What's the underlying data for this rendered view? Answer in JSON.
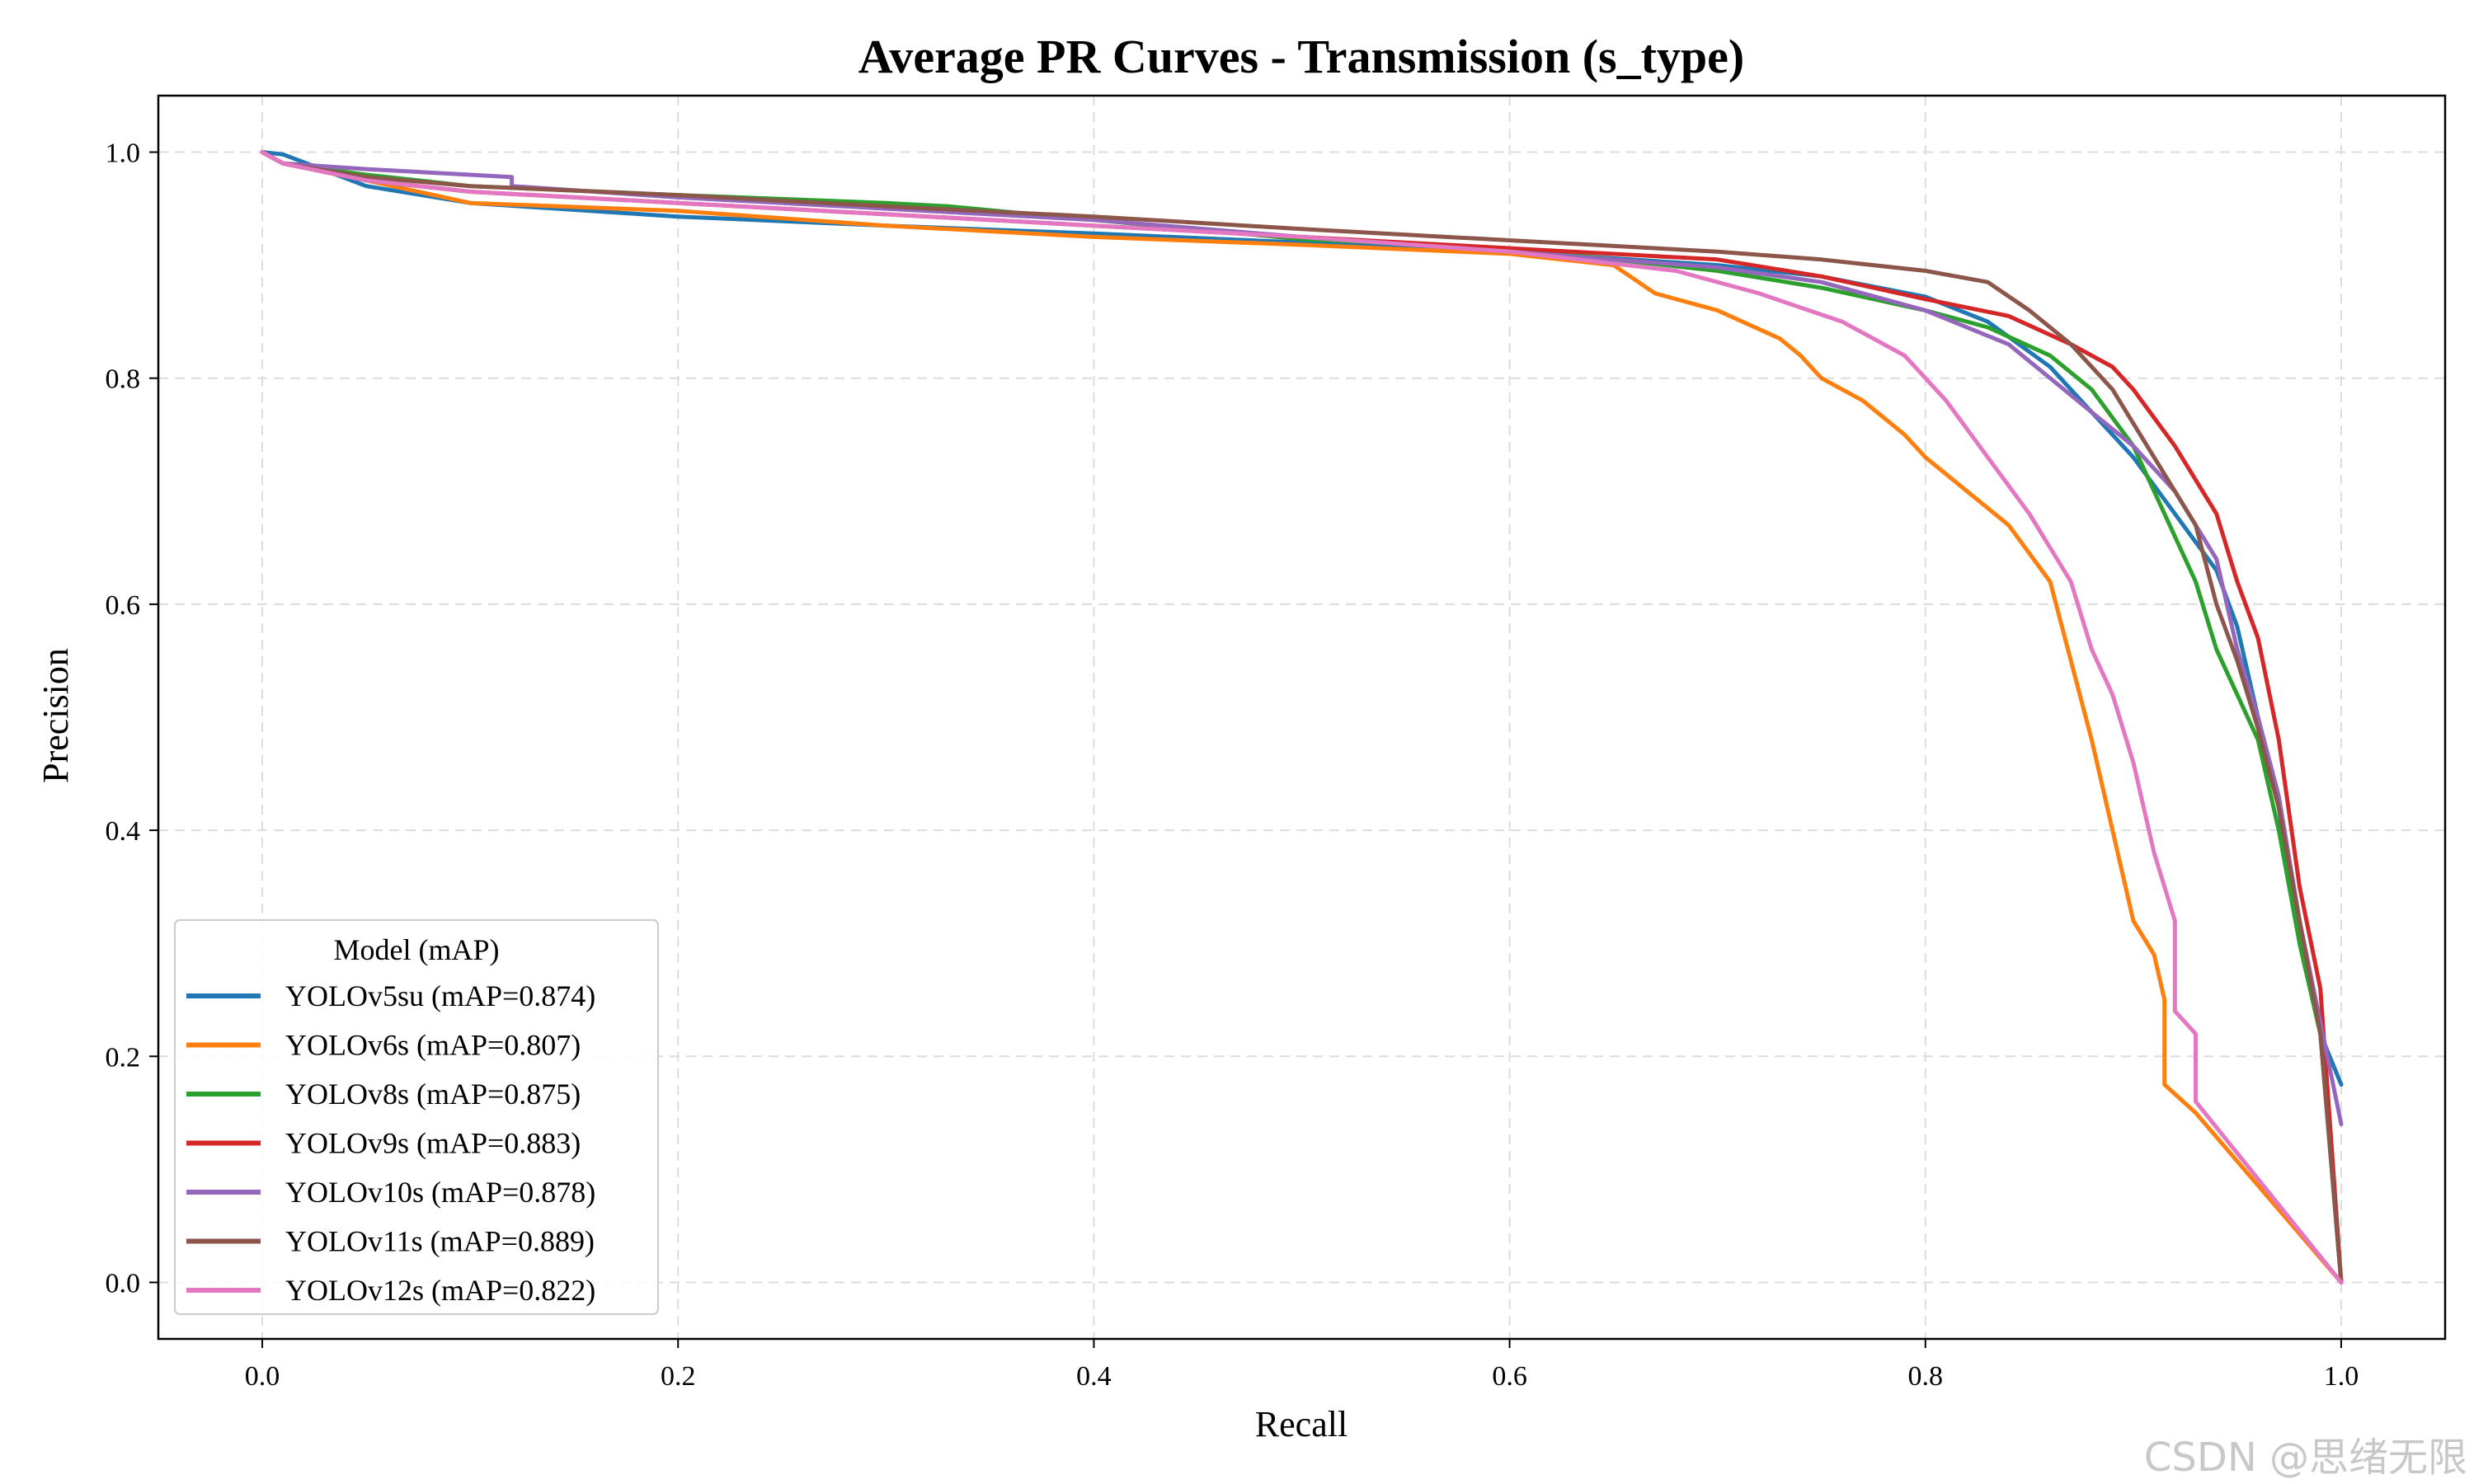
{
  "chart_data": {
    "type": "line",
    "title": "Average PR Curves - Transmission (s_type)",
    "xlabel": "Recall",
    "ylabel": "Precision",
    "xlim": [
      -0.05,
      1.05
    ],
    "ylim": [
      -0.05,
      1.05
    ],
    "xticks": [
      0.0,
      0.2,
      0.4,
      0.6,
      0.8,
      1.0
    ],
    "yticks": [
      0.0,
      0.2,
      0.4,
      0.6,
      0.8,
      1.0
    ],
    "xtick_labels": [
      "0.0",
      "0.2",
      "0.4",
      "0.6",
      "0.8",
      "1.0"
    ],
    "ytick_labels": [
      "0.0",
      "0.2",
      "0.4",
      "0.6",
      "0.8",
      "1.0"
    ],
    "grid": true,
    "legend_title": "Model (mAP)",
    "legend_position": "lower-left",
    "series": [
      {
        "name": "YOLOv5su (mAP=0.874)",
        "color": "#1f77b4",
        "points": [
          [
            0.0,
            1.0
          ],
          [
            0.01,
            0.998
          ],
          [
            0.05,
            0.97
          ],
          [
            0.1,
            0.955
          ],
          [
            0.2,
            0.943
          ],
          [
            0.3,
            0.935
          ],
          [
            0.4,
            0.928
          ],
          [
            0.5,
            0.92
          ],
          [
            0.6,
            0.912
          ],
          [
            0.7,
            0.9
          ],
          [
            0.75,
            0.89
          ],
          [
            0.8,
            0.872
          ],
          [
            0.83,
            0.85
          ],
          [
            0.86,
            0.81
          ],
          [
            0.88,
            0.77
          ],
          [
            0.9,
            0.73
          ],
          [
            0.92,
            0.68
          ],
          [
            0.94,
            0.63
          ],
          [
            0.95,
            0.58
          ],
          [
            0.96,
            0.5
          ],
          [
            0.97,
            0.42
          ],
          [
            0.98,
            0.3
          ],
          [
            0.99,
            0.22
          ],
          [
            1.0,
            0.175
          ]
        ]
      },
      {
        "name": "YOLOv6s (mAP=0.807)",
        "color": "#ff7f0e",
        "points": [
          [
            0.0,
            1.0
          ],
          [
            0.01,
            0.99
          ],
          [
            0.05,
            0.975
          ],
          [
            0.1,
            0.955
          ],
          [
            0.2,
            0.948
          ],
          [
            0.3,
            0.935
          ],
          [
            0.4,
            0.925
          ],
          [
            0.5,
            0.918
          ],
          [
            0.6,
            0.91
          ],
          [
            0.65,
            0.9
          ],
          [
            0.67,
            0.875
          ],
          [
            0.7,
            0.86
          ],
          [
            0.73,
            0.835
          ],
          [
            0.74,
            0.82
          ],
          [
            0.75,
            0.8
          ],
          [
            0.77,
            0.78
          ],
          [
            0.79,
            0.75
          ],
          [
            0.8,
            0.73
          ],
          [
            0.82,
            0.7
          ],
          [
            0.84,
            0.67
          ],
          [
            0.86,
            0.62
          ],
          [
            0.87,
            0.55
          ],
          [
            0.88,
            0.48
          ],
          [
            0.89,
            0.4
          ],
          [
            0.9,
            0.32
          ],
          [
            0.91,
            0.29
          ],
          [
            0.915,
            0.25
          ],
          [
            0.915,
            0.175
          ],
          [
            0.93,
            0.15
          ],
          [
            1.0,
            0.0
          ]
        ]
      },
      {
        "name": "YOLOv8s (mAP=0.875)",
        "color": "#2ca02c",
        "points": [
          [
            0.0,
            1.0
          ],
          [
            0.01,
            0.99
          ],
          [
            0.05,
            0.98
          ],
          [
            0.1,
            0.97
          ],
          [
            0.2,
            0.962
          ],
          [
            0.3,
            0.955
          ],
          [
            0.33,
            0.952
          ],
          [
            0.4,
            0.94
          ],
          [
            0.5,
            0.923
          ],
          [
            0.6,
            0.915
          ],
          [
            0.7,
            0.895
          ],
          [
            0.75,
            0.88
          ],
          [
            0.8,
            0.86
          ],
          [
            0.83,
            0.845
          ],
          [
            0.86,
            0.82
          ],
          [
            0.88,
            0.79
          ],
          [
            0.9,
            0.74
          ],
          [
            0.91,
            0.7
          ],
          [
            0.92,
            0.66
          ],
          [
            0.93,
            0.62
          ],
          [
            0.94,
            0.56
          ],
          [
            0.95,
            0.52
          ],
          [
            0.96,
            0.48
          ],
          [
            0.97,
            0.4
          ],
          [
            0.98,
            0.3
          ],
          [
            0.99,
            0.22
          ],
          [
            1.0,
            0.0
          ]
        ]
      },
      {
        "name": "YOLOv9s (mAP=0.883)",
        "color": "#d62728",
        "points": [
          [
            0.0,
            1.0
          ],
          [
            0.01,
            0.99
          ],
          [
            0.05,
            0.975
          ],
          [
            0.1,
            0.965
          ],
          [
            0.2,
            0.955
          ],
          [
            0.3,
            0.945
          ],
          [
            0.4,
            0.935
          ],
          [
            0.5,
            0.925
          ],
          [
            0.6,
            0.915
          ],
          [
            0.7,
            0.905
          ],
          [
            0.75,
            0.89
          ],
          [
            0.8,
            0.87
          ],
          [
            0.84,
            0.855
          ],
          [
            0.87,
            0.83
          ],
          [
            0.89,
            0.81
          ],
          [
            0.9,
            0.79
          ],
          [
            0.92,
            0.74
          ],
          [
            0.94,
            0.68
          ],
          [
            0.95,
            0.62
          ],
          [
            0.96,
            0.57
          ],
          [
            0.97,
            0.48
          ],
          [
            0.98,
            0.35
          ],
          [
            0.99,
            0.26
          ],
          [
            1.0,
            0.0
          ]
        ]
      },
      {
        "name": "YOLOv10s (mAP=0.878)",
        "color": "#9467bd",
        "points": [
          [
            0.0,
            1.0
          ],
          [
            0.01,
            0.99
          ],
          [
            0.05,
            0.985
          ],
          [
            0.12,
            0.978
          ],
          [
            0.12,
            0.97
          ],
          [
            0.2,
            0.96
          ],
          [
            0.3,
            0.95
          ],
          [
            0.4,
            0.94
          ],
          [
            0.5,
            0.925
          ],
          [
            0.6,
            0.912
          ],
          [
            0.7,
            0.898
          ],
          [
            0.75,
            0.885
          ],
          [
            0.8,
            0.86
          ],
          [
            0.84,
            0.83
          ],
          [
            0.86,
            0.8
          ],
          [
            0.88,
            0.77
          ],
          [
            0.9,
            0.74
          ],
          [
            0.92,
            0.7
          ],
          [
            0.94,
            0.64
          ],
          [
            0.95,
            0.56
          ],
          [
            0.96,
            0.5
          ],
          [
            0.97,
            0.43
          ],
          [
            0.98,
            0.32
          ],
          [
            0.99,
            0.23
          ],
          [
            1.0,
            0.14
          ]
        ]
      },
      {
        "name": "YOLOv11s (mAP=0.889)",
        "color": "#8c564b",
        "points": [
          [
            0.0,
            1.0
          ],
          [
            0.01,
            0.99
          ],
          [
            0.05,
            0.978
          ],
          [
            0.1,
            0.97
          ],
          [
            0.2,
            0.962
          ],
          [
            0.3,
            0.952
          ],
          [
            0.4,
            0.943
          ],
          [
            0.5,
            0.932
          ],
          [
            0.6,
            0.922
          ],
          [
            0.7,
            0.912
          ],
          [
            0.75,
            0.905
          ],
          [
            0.8,
            0.895
          ],
          [
            0.83,
            0.885
          ],
          [
            0.85,
            0.86
          ],
          [
            0.87,
            0.83
          ],
          [
            0.89,
            0.79
          ],
          [
            0.9,
            0.76
          ],
          [
            0.91,
            0.73
          ],
          [
            0.92,
            0.7
          ],
          [
            0.93,
            0.67
          ],
          [
            0.94,
            0.6
          ],
          [
            0.95,
            0.55
          ],
          [
            0.96,
            0.49
          ],
          [
            0.97,
            0.42
          ],
          [
            0.98,
            0.32
          ],
          [
            0.99,
            0.22
          ],
          [
            1.0,
            0.0
          ]
        ]
      },
      {
        "name": "YOLOv12s (mAP=0.822)",
        "color": "#e377c2",
        "points": [
          [
            0.0,
            1.0
          ],
          [
            0.01,
            0.99
          ],
          [
            0.05,
            0.975
          ],
          [
            0.1,
            0.965
          ],
          [
            0.2,
            0.955
          ],
          [
            0.3,
            0.945
          ],
          [
            0.4,
            0.935
          ],
          [
            0.5,
            0.925
          ],
          [
            0.6,
            0.912
          ],
          [
            0.68,
            0.895
          ],
          [
            0.72,
            0.875
          ],
          [
            0.76,
            0.85
          ],
          [
            0.79,
            0.82
          ],
          [
            0.81,
            0.78
          ],
          [
            0.83,
            0.73
          ],
          [
            0.85,
            0.68
          ],
          [
            0.87,
            0.62
          ],
          [
            0.88,
            0.56
          ],
          [
            0.89,
            0.52
          ],
          [
            0.9,
            0.46
          ],
          [
            0.91,
            0.38
          ],
          [
            0.92,
            0.32
          ],
          [
            0.92,
            0.24
          ],
          [
            0.93,
            0.22
          ],
          [
            0.93,
            0.16
          ],
          [
            1.0,
            0.0
          ]
        ]
      }
    ]
  },
  "watermark": "CSDN @思绪无限"
}
